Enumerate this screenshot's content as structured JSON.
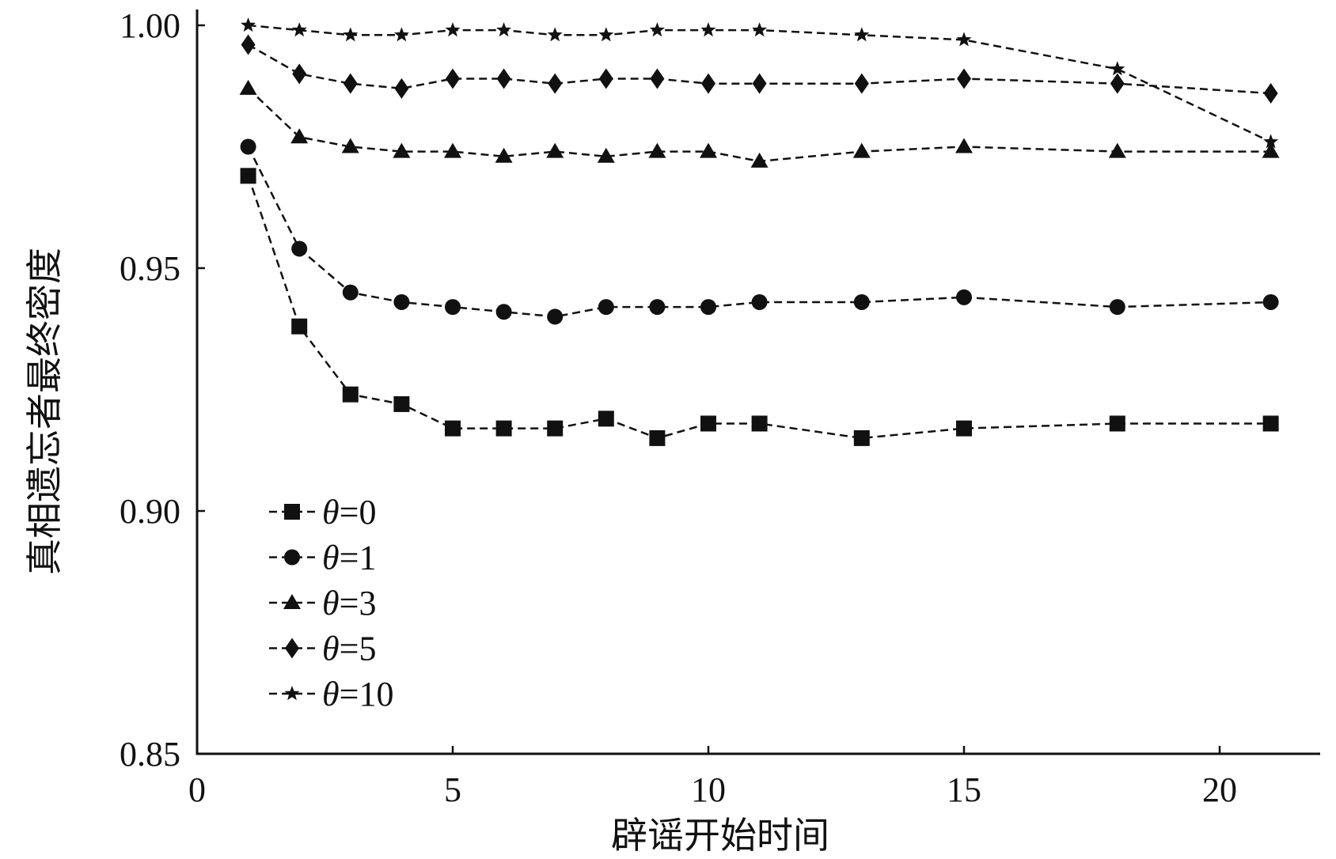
{
  "chart_data": {
    "type": "line",
    "title": "",
    "xlabel": "辟谣开始时间",
    "ylabel": "真相遗忘者最终密度",
    "xlim": [
      0,
      22
    ],
    "ylim": [
      0.85,
      1.0
    ],
    "xticks": [
      0,
      5,
      10,
      15,
      20
    ],
    "xtick_labels": [
      "0",
      "5",
      "10",
      "15",
      "20"
    ],
    "yticks": [
      0.85,
      0.9,
      0.95,
      1.0
    ],
    "ytick_labels": [
      "0.85",
      "0.90",
      "0.95",
      "1.00"
    ],
    "grid": false,
    "legend_position": "bottom-left",
    "line_style": "dashed",
    "line_color": "#111111",
    "x": [
      1,
      2,
      3,
      4,
      5,
      6,
      7,
      8,
      9,
      10,
      11,
      13,
      15,
      18,
      21
    ],
    "series": [
      {
        "name": "θ=0",
        "label_var": "θ",
        "label_val": "=0",
        "marker": "square",
        "values": [
          0.969,
          0.938,
          0.924,
          0.922,
          0.917,
          0.917,
          0.917,
          0.919,
          0.915,
          0.918,
          0.918,
          0.915,
          0.917,
          0.918,
          0.918
        ]
      },
      {
        "name": "θ=1",
        "label_var": "θ",
        "label_val": "=1",
        "marker": "circle",
        "values": [
          0.975,
          0.954,
          0.945,
          0.943,
          0.942,
          0.941,
          0.94,
          0.942,
          0.942,
          0.942,
          0.943,
          0.943,
          0.944,
          0.942,
          0.943
        ]
      },
      {
        "name": "θ=3",
        "label_var": "θ",
        "label_val": "=3",
        "marker": "triangle",
        "values": [
          0.987,
          0.977,
          0.975,
          0.974,
          0.974,
          0.973,
          0.974,
          0.973,
          0.974,
          0.974,
          0.972,
          0.974,
          0.975,
          0.974,
          0.974
        ]
      },
      {
        "name": "θ=5",
        "label_var": "θ",
        "label_val": "=5",
        "marker": "diamond",
        "values": [
          0.996,
          0.99,
          0.988,
          0.987,
          0.989,
          0.989,
          0.988,
          0.989,
          0.989,
          0.988,
          0.988,
          0.988,
          0.989,
          0.988,
          0.986
        ]
      },
      {
        "name": "θ=10",
        "label_var": "θ",
        "label_val": "=10",
        "marker": "star",
        "values": [
          1.0,
          0.999,
          0.998,
          0.998,
          0.999,
          0.999,
          0.998,
          0.998,
          0.999,
          0.999,
          0.999,
          0.998,
          0.997,
          0.991,
          0.976
        ]
      }
    ]
  }
}
